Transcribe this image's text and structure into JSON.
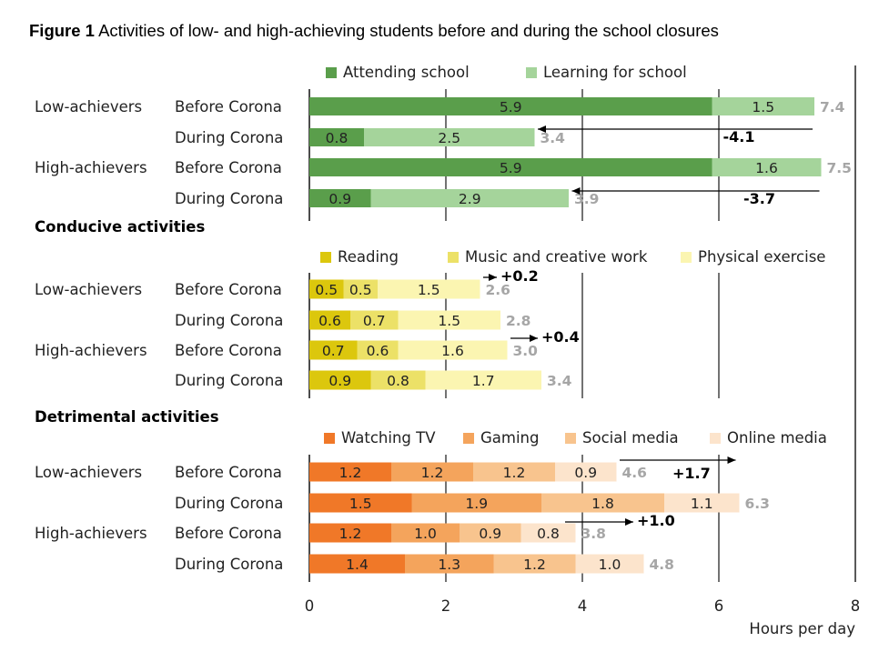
{
  "title": {
    "bold": "Figure 1",
    "text": " Activities of low- and high-achieving students before and during the school closures"
  },
  "axis": {
    "xlabel": "Hours per day",
    "ticks": [
      0,
      2,
      4,
      6,
      8
    ],
    "xlim": [
      0,
      8
    ]
  },
  "colors": {
    "attending": "#5a9e4b",
    "learning": "#a5d49b",
    "reading": "#dcc70d",
    "music": "#ece167",
    "physical": "#fbf5b1",
    "tv": "#f07828",
    "gaming": "#f4a45c",
    "social": "#f8c48e",
    "online": "#fce4cc",
    "total_text": "#a6a6a6"
  },
  "chart_data": [
    {
      "type": "bar",
      "orientation": "horizontal",
      "stacked": true,
      "title": "",
      "series": [
        {
          "name": "Attending school",
          "values": [
            5.9,
            0.8,
            5.9,
            0.9
          ]
        },
        {
          "name": "Learning for school",
          "values": [
            1.5,
            2.5,
            1.6,
            2.9
          ]
        }
      ],
      "rows": [
        {
          "group": "Low-achievers",
          "label": "Before Corona",
          "total": "7.4"
        },
        {
          "group": "",
          "label": "During Corona",
          "total": "3.4"
        },
        {
          "group": "High-achievers",
          "label": "Before Corona",
          "total": "7.5"
        },
        {
          "group": "",
          "label": "During Corona",
          "total": "3.9"
        }
      ],
      "changes": [
        {
          "text": "-4.1",
          "from": 7.4,
          "to": 3.4
        },
        {
          "text": "-3.7",
          "from": 7.5,
          "to": 3.9
        }
      ]
    },
    {
      "type": "bar",
      "orientation": "horizontal",
      "stacked": true,
      "title": "Conducive activities",
      "series": [
        {
          "name": "Reading",
          "values": [
            0.5,
            0.6,
            0.7,
            0.9
          ]
        },
        {
          "name": "Music and creative work",
          "values": [
            0.5,
            0.7,
            0.6,
            0.8
          ]
        },
        {
          "name": "Physical exercise",
          "values": [
            1.5,
            1.5,
            1.6,
            1.7
          ]
        }
      ],
      "rows": [
        {
          "group": "Low-achievers",
          "label": "Before Corona",
          "total": "2.6"
        },
        {
          "group": "",
          "label": "During Corona",
          "total": "2.8"
        },
        {
          "group": "High-achievers",
          "label": "Before Corona",
          "total": "3.0"
        },
        {
          "group": "",
          "label": "During Corona",
          "total": "3.4"
        }
      ],
      "changes": [
        {
          "text": "+0.2",
          "from": 2.6,
          "to": 2.8
        },
        {
          "text": "+0.4",
          "from": 3.0,
          "to": 3.4
        }
      ]
    },
    {
      "type": "bar",
      "orientation": "horizontal",
      "stacked": true,
      "title": "Detrimental activities",
      "series": [
        {
          "name": "Watching TV",
          "values": [
            1.2,
            1.5,
            1.2,
            1.4
          ]
        },
        {
          "name": "Gaming",
          "values": [
            1.2,
            1.9,
            1.0,
            1.3
          ]
        },
        {
          "name": "Social media",
          "values": [
            1.2,
            1.8,
            0.9,
            1.2
          ]
        },
        {
          "name": "Online media",
          "values": [
            0.9,
            1.1,
            0.8,
            1.0
          ]
        }
      ],
      "rows": [
        {
          "group": "Low-achievers",
          "label": "Before Corona",
          "total": "4.6"
        },
        {
          "group": "",
          "label": "During Corona",
          "total": "6.3"
        },
        {
          "group": "High-achievers",
          "label": "Before Corona",
          "total": "3.8"
        },
        {
          "group": "",
          "label": "During Corona",
          "total": "4.8"
        }
      ],
      "changes": [
        {
          "text": "+1.7",
          "from": 4.6,
          "to": 6.3
        },
        {
          "text": "+1.0",
          "from": 3.8,
          "to": 4.8
        }
      ]
    }
  ]
}
